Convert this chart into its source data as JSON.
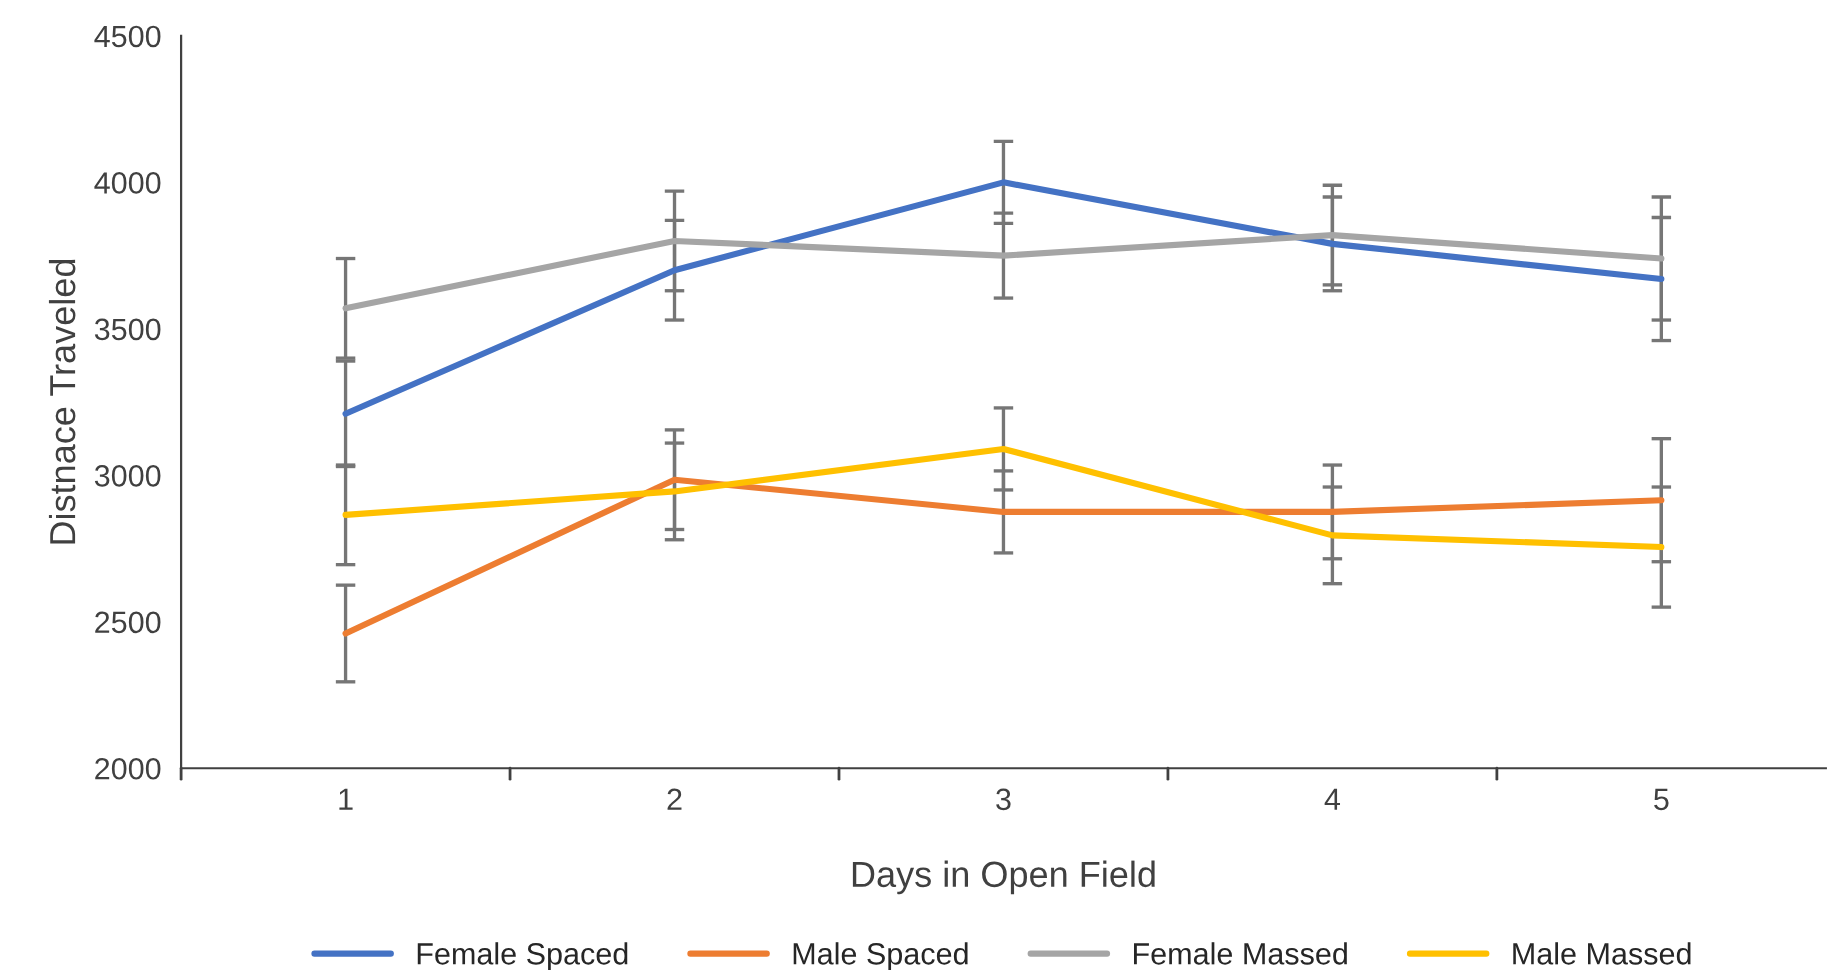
{
  "chart_data": {
    "type": "line",
    "xlabel": "Days in Open Field",
    "ylabel": "Distnace Traveled",
    "categories": [
      "1",
      "2",
      "3",
      "4",
      "5"
    ],
    "series": [
      {
        "name": "Female Spaced",
        "color": "#4472c4",
        "values": [
          3210,
          3700,
          4000,
          3790,
          3670
        ],
        "errors": [
          180,
          170,
          140,
          160,
          210
        ]
      },
      {
        "name": "Male Spaced",
        "color": "#ed7d31",
        "values": [
          2460,
          2985,
          2875,
          2875,
          2915
        ],
        "errors": [
          165,
          170,
          140,
          160,
          210
        ]
      },
      {
        "name": "Female Massed",
        "color": "#a5a5a5",
        "values": [
          3570,
          3800,
          3750,
          3820,
          3740
        ],
        "errors": [
          170,
          170,
          145,
          170,
          210
        ]
      },
      {
        "name": "Male Massed",
        "color": "#ffc000",
        "values": [
          2865,
          2945,
          3090,
          2795,
          2755
        ],
        "errors": [
          170,
          165,
          140,
          165,
          205
        ]
      }
    ],
    "ylim": [
      2000,
      4500
    ],
    "yticks": [
      2000,
      2500,
      3000,
      3500,
      4000,
      4500
    ],
    "grid": false,
    "legend": "bottom",
    "marker": "none",
    "line_style": "solid"
  }
}
